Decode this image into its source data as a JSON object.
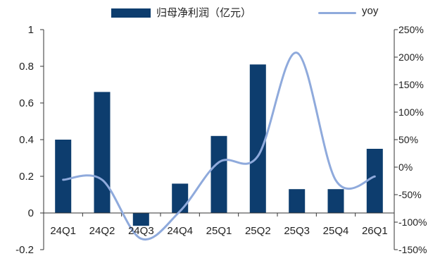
{
  "chart_data": {
    "type": "bar",
    "categories": [
      "24Q1",
      "24Q2",
      "24Q3",
      "24Q4",
      "25Q1",
      "25Q2",
      "25Q3",
      "25Q4",
      "26Q1"
    ],
    "series": [
      {
        "name": "归母净利润（亿元）",
        "type": "bar",
        "axis": "left",
        "values": [
          0.4,
          0.66,
          -0.07,
          0.16,
          0.42,
          0.81,
          0.13,
          0.13,
          0.35
        ]
      },
      {
        "name": "yoy",
        "type": "line",
        "axis": "right",
        "smooth": true,
        "values": [
          -23,
          -23,
          -130,
          -80,
          9,
          20,
          208,
          -24,
          -17
        ]
      }
    ],
    "left_axis": {
      "ylim": [
        -0.2,
        1
      ],
      "ticks": [
        -0.2,
        0,
        0.2,
        0.4,
        0.6,
        0.8,
        1
      ],
      "tick_labels": [
        "-0.2",
        "0",
        "0.2",
        "0.4",
        "0.6",
        "0.8",
        "1"
      ]
    },
    "right_axis": {
      "ylim": [
        -150,
        250
      ],
      "ticks": [
        -150,
        -100,
        -50,
        0,
        50,
        100,
        150,
        200,
        250
      ],
      "tick_labels": [
        "-150%",
        "-100%",
        "-50%",
        "0%",
        "50%",
        "100%",
        "150%",
        "200%",
        "250%"
      ]
    },
    "title": "",
    "xlabel": "",
    "ylabel": "",
    "legend_position": "top",
    "grid": false,
    "colors": {
      "bar": "#0d3d6e",
      "line": "#8faadc",
      "axis": "#333333"
    }
  }
}
